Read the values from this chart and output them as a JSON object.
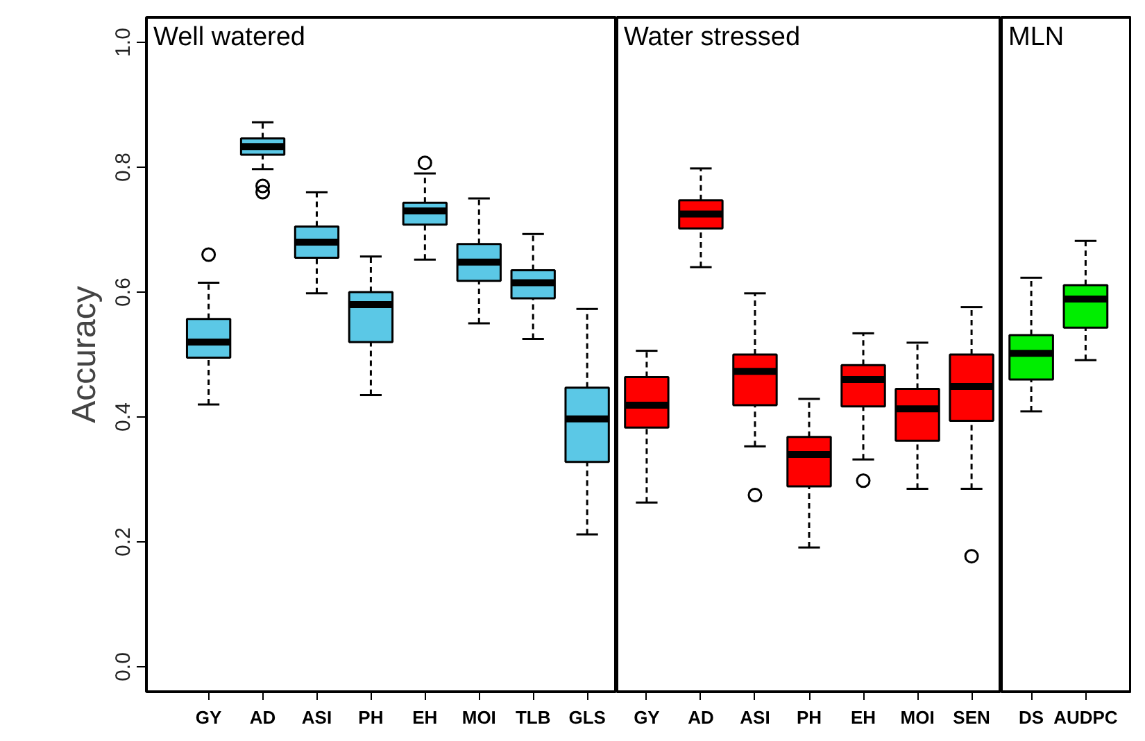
{
  "chart_data": [
    {
      "type": "box",
      "title": "Well watered",
      "ylabel": "Accuracy",
      "categories": [
        "GY",
        "AD",
        "ASI",
        "PH",
        "EH",
        "MOI",
        "TLB",
        "GLS"
      ],
      "ylim": [
        -0.04,
        1.04
      ],
      "yticks": [
        {
          "value": 0,
          "label": "0.0"
        },
        0.2,
        0.4,
        0.6,
        0.8,
        {
          "value": 1,
          "label": "1.0"
        }
      ],
      "grid": false,
      "series": [
        {
          "color": "#5bc8e6",
          "boxes": [
            {
              "low": 0.42,
              "q1": 0.495,
              "median": 0.52,
              "q3": 0.557,
              "high": 0.615,
              "outliers": [
                0.66
              ]
            },
            {
              "low": 0.797,
              "q1": 0.82,
              "median": 0.833,
              "q3": 0.846,
              "high": 0.872,
              "outliers": [
                0.77,
                0.76
              ]
            },
            {
              "low": 0.598,
              "q1": 0.655,
              "median": 0.68,
              "q3": 0.705,
              "high": 0.76
            },
            {
              "low": 0.435,
              "q1": 0.52,
              "median": 0.58,
              "q3": 0.6,
              "high": 0.657
            },
            {
              "low": 0.652,
              "q1": 0.708,
              "median": 0.73,
              "q3": 0.743,
              "high": 0.79,
              "outliers": [
                0.807
              ]
            },
            {
              "low": 0.55,
              "q1": 0.618,
              "median": 0.648,
              "q3": 0.677,
              "high": 0.75
            },
            {
              "low": 0.525,
              "q1": 0.59,
              "median": 0.615,
              "q3": 0.635,
              "high": 0.693
            },
            {
              "low": 0.212,
              "q1": 0.328,
              "median": 0.397,
              "q3": 0.447,
              "high": 0.573
            }
          ]
        }
      ]
    },
    {
      "type": "box",
      "title": "Water stressed",
      "categories": [
        "GY",
        "AD",
        "ASI",
        "PH",
        "EH",
        "MOI",
        "SEN"
      ],
      "ylim": [
        -0.04,
        1.04
      ],
      "tick_labels": "x",
      "grid": false,
      "series": [
        {
          "color": "#ff0000",
          "boxes": [
            {
              "low": 0.263,
              "q1": 0.383,
              "median": 0.419,
              "q3": 0.464,
              "high": 0.506
            },
            {
              "low": 0.64,
              "q1": 0.702,
              "median": 0.725,
              "q3": 0.747,
              "high": 0.798
            },
            {
              "low": 0.353,
              "q1": 0.419,
              "median": 0.473,
              "q3": 0.5,
              "high": 0.598,
              "outliers": [
                0.275
              ]
            },
            {
              "low": 0.191,
              "q1": 0.289,
              "median": 0.34,
              "q3": 0.368,
              "high": 0.429
            },
            {
              "low": 0.332,
              "q1": 0.417,
              "median": 0.46,
              "q3": 0.483,
              "high": 0.534,
              "outliers": [
                0.298
              ]
            },
            {
              "low": 0.285,
              "q1": 0.362,
              "median": 0.413,
              "q3": 0.445,
              "high": 0.519
            },
            {
              "low": 0.285,
              "q1": 0.394,
              "median": 0.449,
              "q3": 0.5,
              "high": 0.576,
              "outliers": [
                0.177
              ]
            }
          ]
        }
      ]
    },
    {
      "type": "box",
      "title": "MLN",
      "categories": [
        "DS",
        "AUDPC"
      ],
      "ylim": [
        -0.04,
        1.04
      ],
      "tick_labels": "x",
      "grid": false,
      "series": [
        {
          "color": "#00ee00",
          "boxes": [
            {
              "low": 0.409,
              "q1": 0.46,
              "median": 0.502,
              "q3": 0.531,
              "high": 0.623
            },
            {
              "low": 0.491,
              "q1": 0.543,
              "median": 0.589,
              "q3": 0.611,
              "high": 0.682
            }
          ]
        }
      ]
    }
  ]
}
